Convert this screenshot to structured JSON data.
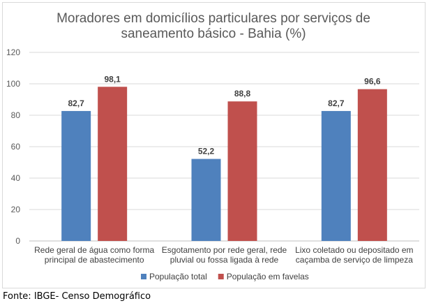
{
  "chart_data": {
    "type": "bar",
    "title": "Moradores em domicílios particulares por serviços de saneamento básico - Bahia (%)",
    "title_lines": [
      "Moradores em domicílios particulares por serviços de",
      "saneamento básico - Bahia (%)"
    ],
    "categories": [
      "Rede geral de água como forma principal de abastecimento",
      "Esgotamento por rede geral, rede pluvial ou fossa ligada à rede",
      "Lixo coletado ou depositado em caçamba de serviço de limpeza"
    ],
    "category_lines": [
      [
        "Rede geral de água como forma",
        "principal de abastecimento"
      ],
      [
        "Esgotamento por rede geral, rede",
        "pluvial ou fossa ligada à rede"
      ],
      [
        "Lixo coletado ou depositado em",
        "caçamba de serviço de limpeza"
      ]
    ],
    "series": [
      {
        "name": "População total",
        "values": [
          82.7,
          52.2,
          82.7
        ],
        "labels": [
          "82,7",
          "52,2",
          "82,7"
        ],
        "color": "#4f81bd"
      },
      {
        "name": "População em favelas",
        "values": [
          98.1,
          88.8,
          96.6
        ],
        "labels": [
          "98,1",
          "88,8",
          "96,6"
        ],
        "color": "#c0504d"
      }
    ],
    "ylim": [
      0,
      120
    ],
    "yticks": [
      0,
      20,
      40,
      60,
      80,
      100,
      120
    ],
    "grid": true,
    "legend": "bottom"
  },
  "source": "Fonte: IBGE- Censo Demográfico"
}
